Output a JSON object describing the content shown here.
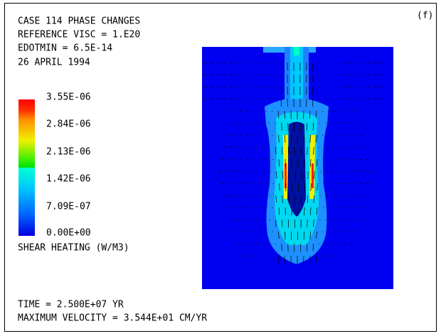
{
  "header": {
    "lines": [
      "CASE 114  PHASE CHANGES",
      "REFERENCE VISC = 1.E20",
      "EDOTMIN = 6.5E-14",
      "26 APRIL 1994"
    ],
    "panel_label": "(f)"
  },
  "colorbar": {
    "labels": [
      "3.55E-06",
      "2.84E-06",
      "2.13E-06",
      "1.42E-06",
      "7.09E-07",
      "0.00E+00"
    ],
    "title": "SHEAR HEATING (W/M3)"
  },
  "footer": {
    "lines": [
      "TIME   = 2.500E+07 YR",
      "MAXIMUM VELOCITY = 3.544E+01 CM/YR"
    ]
  }
}
